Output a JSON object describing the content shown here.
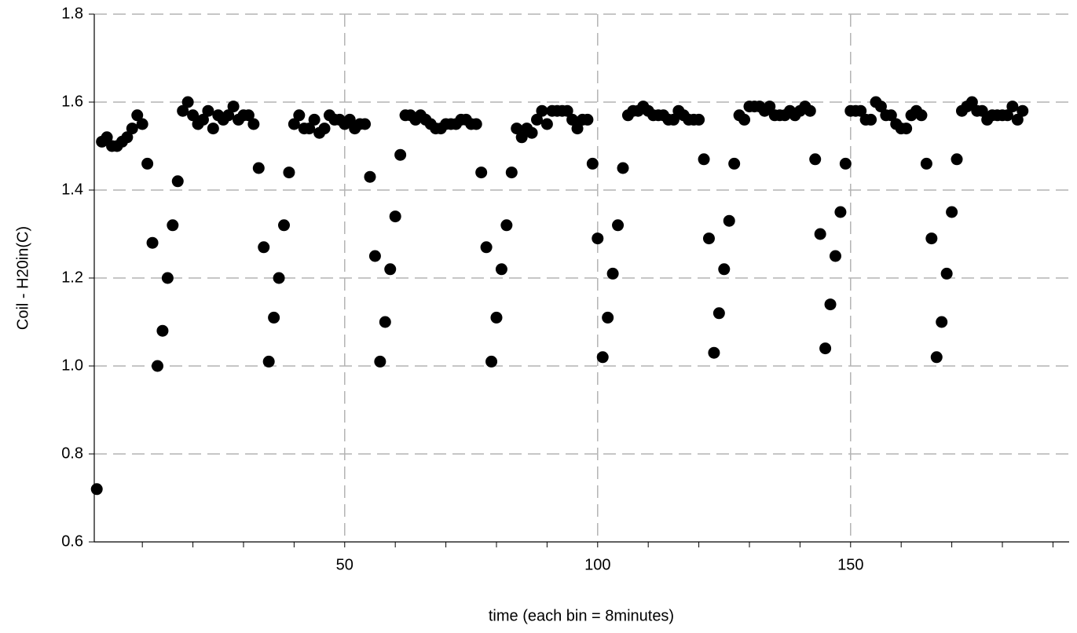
{
  "chart_data": {
    "type": "scatter",
    "x_label": "time (each bin = 8minutes)",
    "y_label": "Coil - H20in(C)",
    "xlim": [
      0.5,
      193.2
    ],
    "ylim": [
      0.6,
      1.8
    ],
    "xticks": [
      50,
      100,
      150
    ],
    "x_minor_ticks": [
      10,
      20,
      30,
      40,
      60,
      70,
      80,
      90,
      110,
      120,
      130,
      140,
      160,
      170,
      180,
      190
    ],
    "yticks": [
      0.6,
      0.8,
      {
        "value": 1,
        "label": "1.0"
      },
      1.2,
      1.4,
      1.6,
      1.8
    ],
    "grid": true,
    "color": "#000000",
    "x": [
      1,
      2,
      3,
      4,
      5,
      6,
      7,
      8,
      9,
      10,
      11,
      12,
      13,
      14,
      15,
      16,
      17,
      18,
      19,
      20,
      21,
      22,
      23,
      24,
      25,
      26,
      27,
      28,
      29,
      30,
      31,
      32,
      33,
      34,
      35,
      36,
      37,
      38,
      39,
      40,
      41,
      42,
      43,
      44,
      45,
      46,
      47,
      48,
      49,
      50,
      51,
      52,
      53,
      54,
      55,
      56,
      57,
      58,
      59,
      60,
      61,
      62,
      63,
      64,
      65,
      66,
      67,
      68,
      69,
      70,
      71,
      72,
      73,
      74,
      75,
      76,
      77,
      78,
      79,
      80,
      81,
      82,
      83,
      84,
      85,
      86,
      87,
      88,
      89,
      90,
      91,
      92,
      93,
      94,
      95,
      96,
      97,
      98,
      99,
      100,
      101,
      102,
      103,
      104,
      105,
      106,
      107,
      108,
      109,
      110,
      111,
      112,
      113,
      114,
      115,
      116,
      117,
      118,
      119,
      120,
      121,
      122,
      123,
      124,
      125,
      126,
      127,
      128,
      129,
      130,
      131,
      132,
      133,
      134,
      135,
      136,
      137,
      138,
      139,
      140,
      141,
      142,
      143,
      144,
      145,
      146,
      147,
      148,
      149,
      150,
      151,
      152,
      153,
      154,
      155,
      156,
      157,
      158,
      159,
      160,
      161,
      162,
      163,
      164,
      165,
      166,
      167,
      168,
      169,
      170,
      171,
      172,
      173,
      174,
      175,
      176,
      177,
      178,
      179,
      180,
      181,
      182,
      183,
      184
    ],
    "values": [
      0.72,
      1.51,
      1.52,
      1.5,
      1.5,
      1.51,
      1.52,
      1.54,
      1.57,
      1.55,
      1.46,
      1.28,
      1.0,
      1.08,
      1.2,
      1.32,
      1.42,
      1.58,
      1.6,
      1.57,
      1.55,
      1.56,
      1.58,
      1.54,
      1.57,
      1.56,
      1.57,
      1.59,
      1.56,
      1.57,
      1.57,
      1.55,
      1.45,
      1.27,
      1.01,
      1.11,
      1.2,
      1.32,
      1.44,
      1.55,
      1.57,
      1.54,
      1.54,
      1.56,
      1.53,
      1.54,
      1.57,
      1.56,
      1.56,
      1.55,
      1.56,
      1.54,
      1.55,
      1.55,
      1.43,
      1.25,
      1.01,
      1.1,
      1.22,
      1.34,
      1.48,
      1.57,
      1.57,
      1.56,
      1.57,
      1.56,
      1.55,
      1.54,
      1.54,
      1.55,
      1.55,
      1.55,
      1.56,
      1.56,
      1.55,
      1.55,
      1.44,
      1.27,
      1.01,
      1.11,
      1.22,
      1.32,
      1.44,
      1.54,
      1.52,
      1.54,
      1.53,
      1.56,
      1.58,
      1.55,
      1.58,
      1.58,
      1.58,
      1.58,
      1.56,
      1.54,
      1.56,
      1.56,
      1.46,
      1.29,
      1.02,
      1.11,
      1.21,
      1.32,
      1.45,
      1.57,
      1.58,
      1.58,
      1.59,
      1.58,
      1.57,
      1.57,
      1.57,
      1.56,
      1.56,
      1.58,
      1.57,
      1.56,
      1.56,
      1.56,
      1.47,
      1.29,
      1.03,
      1.12,
      1.22,
      1.33,
      1.46,
      1.57,
      1.56,
      1.59,
      1.59,
      1.59,
      1.58,
      1.59,
      1.57,
      1.57,
      1.57,
      1.58,
      1.57,
      1.58,
      1.59,
      1.58,
      1.47,
      1.3,
      1.04,
      1.14,
      1.25,
      1.35,
      1.46,
      1.58,
      1.58,
      1.58,
      1.56,
      1.56,
      1.6,
      1.59,
      1.57,
      1.57,
      1.55,
      1.54,
      1.54,
      1.57,
      1.58,
      1.57,
      1.46,
      1.29,
      1.02,
      1.1,
      1.21,
      1.35,
      1.47,
      1.58,
      1.59,
      1.6,
      1.58,
      1.58,
      1.56,
      1.57,
      1.57,
      1.57,
      1.57,
      1.59,
      1.56,
      1.58
    ]
  }
}
